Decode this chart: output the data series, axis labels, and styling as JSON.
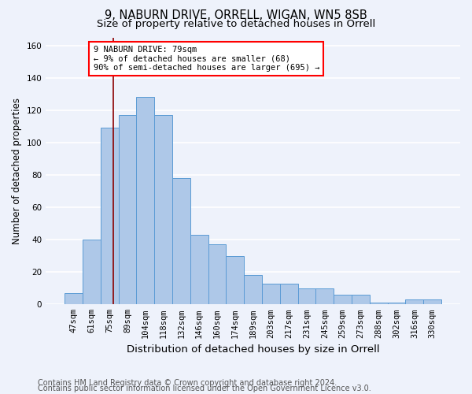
{
  "title1": "9, NABURN DRIVE, ORRELL, WIGAN, WN5 8SB",
  "title2": "Size of property relative to detached houses in Orrell",
  "xlabel": "Distribution of detached houses by size in Orrell",
  "ylabel": "Number of detached properties",
  "bar_labels": [
    "47sqm",
    "61sqm",
    "75sqm",
    "89sqm",
    "104sqm",
    "118sqm",
    "132sqm",
    "146sqm",
    "160sqm",
    "174sqm",
    "189sqm",
    "203sqm",
    "217sqm",
    "231sqm",
    "245sqm",
    "259sqm",
    "273sqm",
    "288sqm",
    "302sqm",
    "316sqm",
    "330sqm"
  ],
  "bar_values": [
    7,
    40,
    109,
    117,
    128,
    117,
    78,
    43,
    37,
    30,
    18,
    13,
    13,
    10,
    10,
    6,
    6,
    1,
    1,
    3,
    3
  ],
  "bar_color": "#aec8e8",
  "bar_edge_color": "#5b9bd5",
  "annotation_text": "9 NABURN DRIVE: 79sqm\n← 9% of detached houses are smaller (68)\n90% of semi-detached houses are larger (695) →",
  "annotation_box_color": "white",
  "annotation_box_edge_color": "red",
  "vline_color": "#8b0000",
  "footer1": "Contains HM Land Registry data © Crown copyright and database right 2024.",
  "footer2": "Contains public sector information licensed under the Open Government Licence v3.0.",
  "ylim": [
    0,
    165
  ],
  "bg_color": "#eef2fb",
  "grid_color": "white",
  "title1_fontsize": 10.5,
  "title2_fontsize": 9.5,
  "xlabel_fontsize": 9.5,
  "ylabel_fontsize": 8.5,
  "tick_fontsize": 7.5,
  "footer_fontsize": 7.0,
  "annot_fontsize": 7.5
}
